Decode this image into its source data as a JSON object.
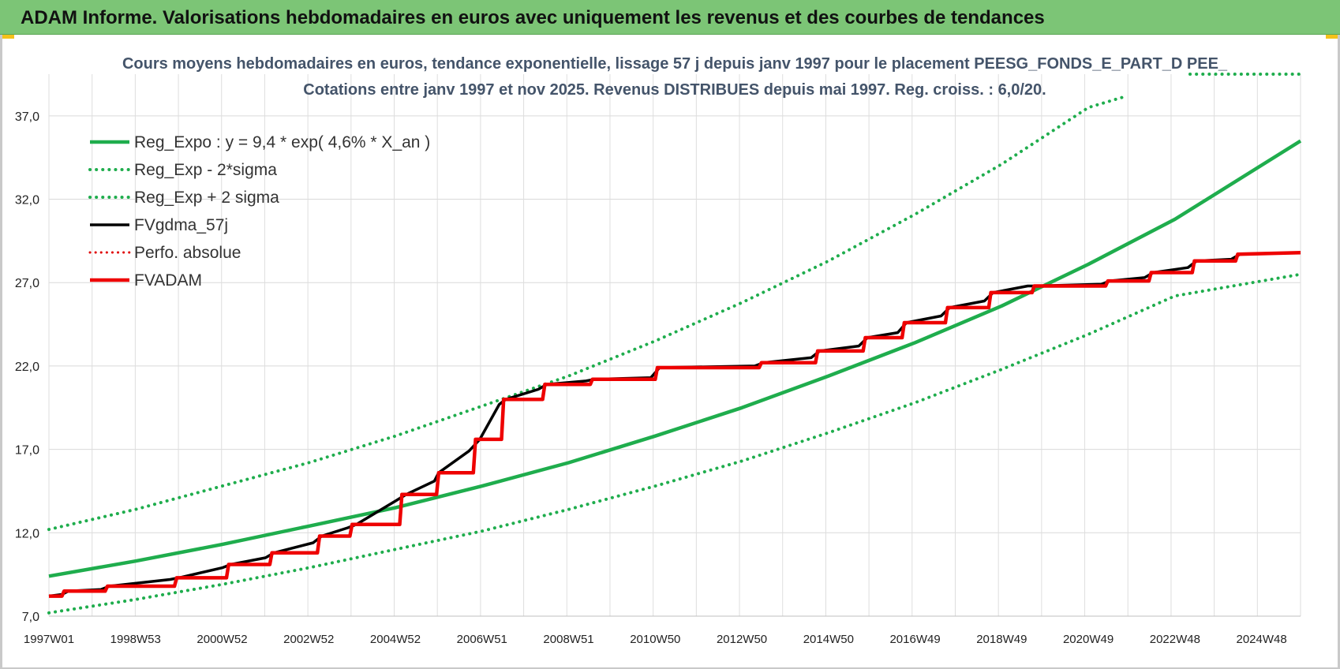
{
  "banner": {
    "title": "ADAM Informe. Valorisations hebdomadaires en euros avec uniquement les revenus et des courbes de tendances"
  },
  "chart_data": {
    "type": "line",
    "title": "Cours moyens hebdomadaires en euros, tendance exponentielle, lissage 57 j depuis janv 1997 pour le placement PEESG_FONDS_E_PART_D PEE_",
    "subtitle": "Cotations entre janv 1997 et nov 2025. Revenus DISTRIBUES depuis mai 1997. Reg. croiss. : 6,0/20.",
    "xlabel": "",
    "ylabel": "",
    "ylim": [
      7.0,
      39.5
    ],
    "yticks": [
      "7,0",
      "12,0",
      "17,0",
      "22,0",
      "27,0",
      "32,0",
      "37,0"
    ],
    "xlim": [
      1997.0,
      2025.9
    ],
    "xtick_labels": [
      "1997W01",
      "1998W53",
      "2000W52",
      "2002W52",
      "2004W52",
      "2006W51",
      "2008W51",
      "2010W50",
      "2012W50",
      "2014W50",
      "2016W49",
      "2018W49",
      "2020W49",
      "2022W48",
      "2024W48"
    ],
    "grid": true,
    "legend_position": "top-left",
    "series": [
      {
        "name": "Reg_Expo : y = 9,4 * exp( 4,6% *  X_an )",
        "style": "solid",
        "color": "#1fad4d",
        "x": [
          1997,
          1999,
          2001,
          2003,
          2005,
          2007,
          2009,
          2011,
          2013,
          2015,
          2017,
          2019,
          2021,
          2023,
          2025.9
        ],
        "values": [
          9.4,
          10.3,
          11.3,
          12.4,
          13.5,
          14.8,
          16.2,
          17.8,
          19.5,
          21.4,
          23.4,
          25.6,
          28.1,
          30.8,
          35.5
        ]
      },
      {
        "name": "Reg_Exp - 2*sigma",
        "style": "dotted",
        "color": "#1fad4d",
        "x": [
          1997,
          1999,
          2001,
          2003,
          2005,
          2007,
          2009,
          2011,
          2013,
          2015,
          2017,
          2019,
          2021,
          2023,
          2025.9
        ],
        "values": [
          7.2,
          8.0,
          8.9,
          9.9,
          11.0,
          12.1,
          13.4,
          14.8,
          16.3,
          18.0,
          19.8,
          21.8,
          23.9,
          26.2,
          27.5
        ]
      },
      {
        "name": "Reg_Exp + 2 sigma",
        "style": "dotted",
        "color": "#1fad4d",
        "x": [
          1997,
          1999,
          2001,
          2003,
          2005,
          2007,
          2009,
          2011,
          2013,
          2015,
          2017,
          2019,
          2021,
          2021.9
        ],
        "values": [
          12.2,
          13.4,
          14.8,
          16.2,
          17.8,
          19.6,
          21.4,
          23.5,
          25.8,
          28.3,
          31.1,
          34.1,
          37.5,
          38.2
        ]
      },
      {
        "name": "FVgdma_57j",
        "style": "solid",
        "color": "#000000",
        "x": [
          1997.0,
          1997.3,
          1997.45,
          1998.2,
          1998.4,
          1999.8,
          2000.0,
          2001.0,
          2001.2,
          2002.0,
          2002.2,
          2003.1,
          2003.3,
          2003.9,
          2004.1,
          2005.0,
          2005.25,
          2005.9,
          2006.0,
          2006.7,
          2006.95,
          2007.4,
          2007.55,
          2008.3,
          2008.5,
          2009.4,
          2009.6,
          2010.9,
          2011.1,
          2013.3,
          2013.5,
          2014.6,
          2014.8,
          2015.7,
          2015.9,
          2016.6,
          2016.8,
          2017.6,
          2017.8,
          2018.6,
          2018.8,
          2019.6,
          2019.8,
          2021.3,
          2021.5,
          2022.3,
          2022.5,
          2023.3,
          2023.5,
          2024.3,
          2024.5,
          2025.9
        ],
        "values": [
          8.2,
          8.3,
          8.5,
          8.6,
          8.8,
          9.2,
          9.3,
          9.9,
          10.1,
          10.5,
          10.8,
          11.4,
          11.8,
          12.3,
          12.5,
          13.9,
          14.3,
          15.1,
          15.6,
          16.9,
          17.6,
          19.7,
          20.0,
          20.6,
          20.9,
          21.1,
          21.2,
          21.3,
          21.9,
          22.0,
          22.2,
          22.5,
          22.9,
          23.2,
          23.7,
          24.0,
          24.6,
          25.0,
          25.5,
          25.9,
          26.4,
          26.8,
          26.8,
          26.9,
          27.1,
          27.3,
          27.6,
          27.9,
          28.3,
          28.4,
          28.7,
          28.8
        ]
      },
      {
        "name": "Perfo. absolue",
        "style": "dotted",
        "color": "#e00000",
        "x": [
          1997.0,
          1997.3,
          1997.35,
          1998.3,
          1998.35,
          1999.9,
          1999.95,
          2001.1,
          2001.15,
          2002.1,
          2002.15,
          2003.2,
          2003.25,
          2003.95,
          2004.0,
          2005.1,
          2005.15,
          2005.95,
          2006.0,
          2006.8,
          2006.85,
          2007.45,
          2007.5,
          2008.4,
          2008.45,
          2009.5,
          2009.55,
          2011.0,
          2011.05,
          2013.4,
          2013.45,
          2014.7,
          2014.75,
          2015.8,
          2015.85,
          2016.7,
          2016.75,
          2017.7,
          2017.75,
          2018.7,
          2018.75,
          2019.7,
          2019.75,
          2021.4,
          2021.45,
          2022.4,
          2022.45,
          2023.4,
          2023.45,
          2024.4,
          2024.45,
          2025.9
        ],
        "values": [
          8.2,
          8.2,
          8.5,
          8.5,
          8.8,
          8.8,
          9.3,
          9.3,
          10.1,
          10.1,
          10.8,
          10.8,
          11.8,
          11.8,
          12.5,
          12.5,
          14.3,
          14.3,
          15.6,
          15.6,
          17.6,
          17.6,
          20.0,
          20.0,
          20.9,
          20.9,
          21.2,
          21.2,
          21.9,
          21.9,
          22.2,
          22.2,
          22.9,
          22.9,
          23.7,
          23.7,
          24.6,
          24.6,
          25.5,
          25.5,
          26.4,
          26.4,
          26.8,
          26.8,
          27.1,
          27.1,
          27.6,
          27.6,
          28.3,
          28.3,
          28.7,
          28.8
        ]
      },
      {
        "name": "FVADAM",
        "style": "solid",
        "color": "#ee0000",
        "x": [
          1997.0,
          1997.3,
          1997.35,
          1998.3,
          1998.35,
          1999.9,
          1999.95,
          2001.1,
          2001.15,
          2002.1,
          2002.15,
          2003.2,
          2003.25,
          2003.95,
          2004.0,
          2005.1,
          2005.15,
          2005.95,
          2006.0,
          2006.8,
          2006.85,
          2007.45,
          2007.5,
          2008.4,
          2008.45,
          2009.5,
          2009.55,
          2011.0,
          2011.05,
          2013.4,
          2013.45,
          2014.7,
          2014.75,
          2015.8,
          2015.85,
          2016.7,
          2016.75,
          2017.7,
          2017.75,
          2018.7,
          2018.75,
          2019.7,
          2019.75,
          2021.4,
          2021.45,
          2022.4,
          2022.45,
          2023.4,
          2023.45,
          2024.4,
          2024.45,
          2025.9
        ],
        "values": [
          8.2,
          8.2,
          8.5,
          8.5,
          8.8,
          8.8,
          9.3,
          9.3,
          10.1,
          10.1,
          10.8,
          10.8,
          11.8,
          11.8,
          12.5,
          12.5,
          14.3,
          14.3,
          15.6,
          15.6,
          17.6,
          17.6,
          20.0,
          20.0,
          20.9,
          20.9,
          21.2,
          21.2,
          21.9,
          21.9,
          22.2,
          22.2,
          22.9,
          22.9,
          23.7,
          23.7,
          24.6,
          24.6,
          25.5,
          25.5,
          26.4,
          26.4,
          26.8,
          26.8,
          27.1,
          27.1,
          27.6,
          27.6,
          28.3,
          28.3,
          28.7,
          28.8
        ]
      }
    ]
  }
}
